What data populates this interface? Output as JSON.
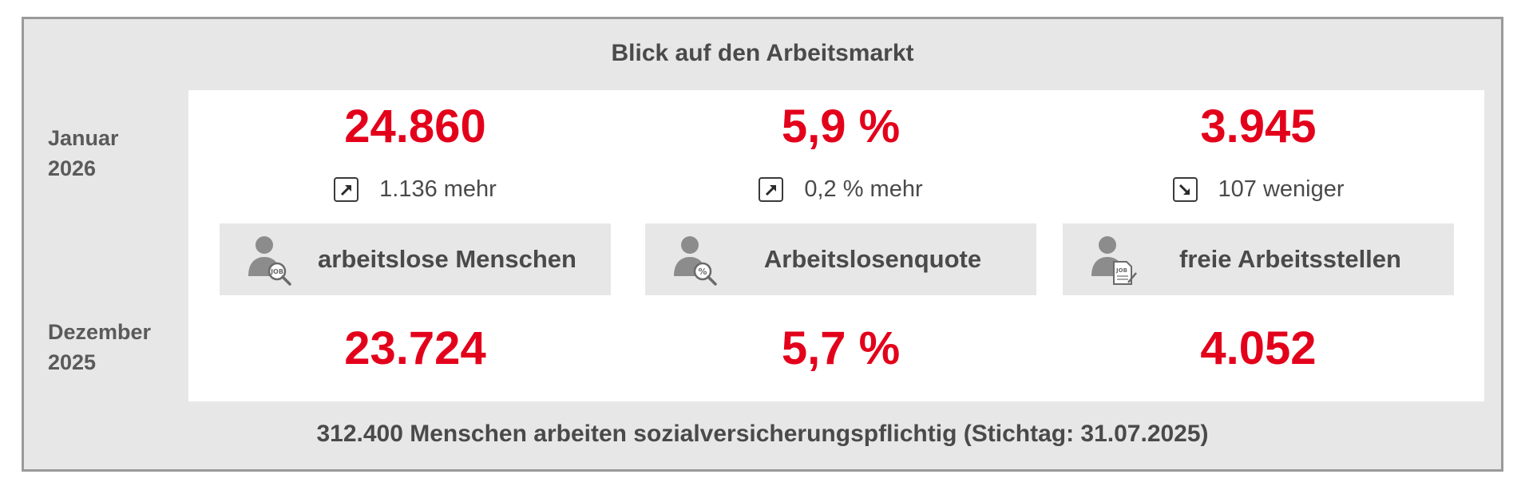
{
  "title": "Blick auf den Arbeitsmarkt",
  "periods": {
    "current": {
      "month": "Januar",
      "year": "2026"
    },
    "previous": {
      "month": "Dezember",
      "year": "2025"
    }
  },
  "indicators": [
    {
      "current": "24.860",
      "change": "1.136 mehr",
      "direction": "up",
      "label": "arbeitslose Menschen",
      "icon": "person-job-search-icon",
      "previous": "23.724"
    },
    {
      "current": "5,9 %",
      "change": "0,2 % mehr",
      "direction": "up",
      "label": "Arbeitslosenquote",
      "icon": "person-percent-search-icon",
      "previous": "5,7 %"
    },
    {
      "current": "3.945",
      "change": "107 weniger",
      "direction": "down",
      "label": "freie Arbeitsstellen",
      "icon": "person-job-document-icon",
      "previous": "4.052"
    }
  ],
  "footer": "312.400 Menschen arbeiten sozialversicherungspflichtig (Stichtag: 31.07.2025)",
  "colors": {
    "accent": "#e3001b",
    "text": "#4a4a4a",
    "background": "#e8e7e7"
  }
}
